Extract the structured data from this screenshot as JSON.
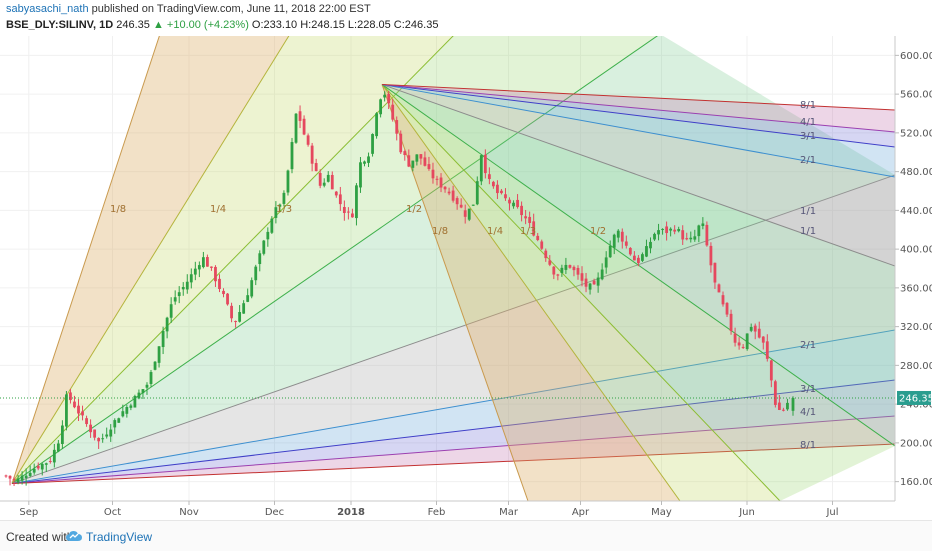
{
  "header": {
    "user": "sabyasachi_nath",
    "published": "published on TradingView.com, June 11, 2018 22:00 EST",
    "symbol": "BSE_DLY:SILINV, 1D",
    "last": "246.35",
    "change": "▲ +10.00 (+4.23%)",
    "ohlc": "O:233.10 H:248.15 L:228.05 C:246.35"
  },
  "footer": {
    "created_with": "Created with",
    "brand": "TradingView"
  },
  "chart_data": {
    "type": "candlestick",
    "symbol": "BSE_DLY:SILINV",
    "interval": "1D",
    "ylim": [
      140,
      620
    ],
    "y_ticks": [
      160,
      200,
      240,
      280,
      320,
      360,
      400,
      440,
      480,
      520,
      560,
      600
    ],
    "x_ticks": [
      "Sep",
      "Oct",
      "Nov",
      "Dec",
      "2018",
      "Feb",
      "Mar",
      "Apr",
      "May",
      "Jun",
      "Jul"
    ],
    "last_price": "246.35",
    "last_ohlc": {
      "open": 233.1,
      "high": 248.15,
      "low": 228.05,
      "close": 246.35
    },
    "price_path": [
      [
        0,
        166
      ],
      [
        10,
        160
      ],
      [
        25,
        172
      ],
      [
        45,
        182
      ],
      [
        55,
        206
      ],
      [
        62,
        250
      ],
      [
        70,
        238
      ],
      [
        80,
        222
      ],
      [
        95,
        200
      ],
      [
        105,
        215
      ],
      [
        115,
        228
      ],
      [
        130,
        245
      ],
      [
        145,
        262
      ],
      [
        158,
        310
      ],
      [
        170,
        348
      ],
      [
        180,
        360
      ],
      [
        188,
        372
      ],
      [
        200,
        392
      ],
      [
        210,
        376
      ],
      [
        222,
        350
      ],
      [
        232,
        322
      ],
      [
        245,
        352
      ],
      [
        258,
        392
      ],
      [
        270,
        432
      ],
      [
        283,
        455
      ],
      [
        290,
        500
      ],
      [
        296,
        545
      ],
      [
        303,
        520
      ],
      [
        312,
        490
      ],
      [
        320,
        465
      ],
      [
        328,
        476
      ],
      [
        336,
        455
      ],
      [
        344,
        440
      ],
      [
        352,
        432
      ],
      [
        360,
        488
      ],
      [
        370,
        500
      ],
      [
        378,
        548
      ],
      [
        384,
        565
      ],
      [
        392,
        540
      ],
      [
        402,
        502
      ],
      [
        410,
        488
      ],
      [
        420,
        498
      ],
      [
        430,
        480
      ],
      [
        440,
        468
      ],
      [
        448,
        462
      ],
      [
        458,
        450
      ],
      [
        468,
        435
      ],
      [
        476,
        448
      ],
      [
        484,
        500
      ],
      [
        490,
        472
      ],
      [
        500,
        458
      ],
      [
        510,
        450
      ],
      [
        520,
        442
      ],
      [
        530,
        430
      ],
      [
        540,
        412
      ],
      [
        550,
        392
      ],
      [
        560,
        372
      ],
      [
        572,
        385
      ],
      [
        580,
        375
      ],
      [
        590,
        362
      ],
      [
        600,
        360
      ],
      [
        610,
        392
      ],
      [
        622,
        420
      ],
      [
        632,
        402
      ],
      [
        642,
        385
      ],
      [
        652,
        400
      ],
      [
        662,
        420
      ],
      [
        672,
        418
      ],
      [
        682,
        422
      ],
      [
        692,
        408
      ],
      [
        700,
        410
      ],
      [
        708,
        430
      ],
      [
        714,
        400
      ],
      [
        722,
        362
      ],
      [
        732,
        335
      ],
      [
        742,
        305
      ],
      [
        750,
        300
      ],
      [
        758,
        322
      ],
      [
        766,
        310
      ],
      [
        772,
        300
      ],
      [
        778,
        270
      ],
      [
        784,
        236
      ],
      [
        790,
        232
      ],
      [
        798,
        246
      ]
    ],
    "gann_fans": [
      {
        "origin_date": "2017-08-31",
        "origin_price": 158,
        "labels": [
          "1/8",
          "1/4",
          "1/3",
          "1/2",
          "1/1",
          "2/1",
          "3/1",
          "4/1",
          "8/1"
        ]
      },
      {
        "origin_date": "2018-01-04",
        "origin_price": 570,
        "labels": [
          "1/8",
          "1/4",
          "1/3",
          "1/2",
          "1/1",
          "2/1",
          "3/1",
          "4/1",
          "8/1"
        ]
      }
    ]
  }
}
